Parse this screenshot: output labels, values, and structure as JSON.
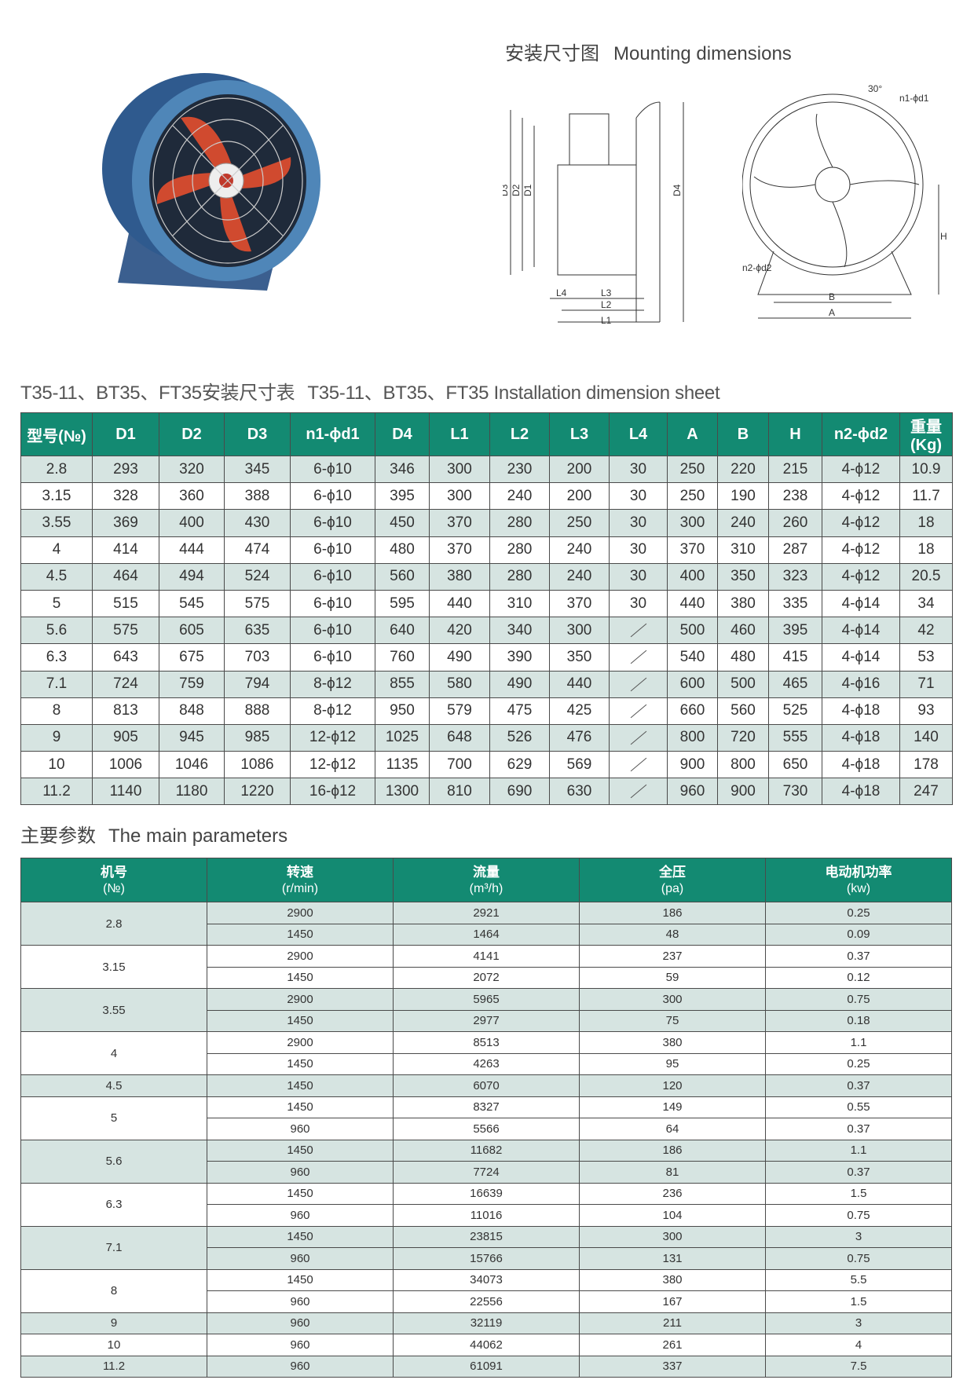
{
  "mounting": {
    "title_cn": "安装尺寸图",
    "title_en": "Mounting dimensions"
  },
  "diagram_labels": {
    "side": [
      "D3",
      "D2",
      "D1",
      "D4",
      "L4",
      "L3",
      "L2",
      "L1"
    ],
    "front": [
      "30°",
      "n1-ϕd1",
      "n2-ϕd2",
      "H",
      "B",
      "A"
    ]
  },
  "sheet": {
    "title_cn": "T35-11、BT35、FT35安装尺寸表",
    "title_en": "T35-11、BT35、FT35 Installation dimension sheet"
  },
  "colors": {
    "header": "#138a72",
    "shade": "#d6e4e1"
  },
  "dim_table": {
    "headers": [
      "型号(№)",
      "D1",
      "D2",
      "D3",
      "n1-ϕd1",
      "D4",
      "L1",
      "L2",
      "L3",
      "L4",
      "A",
      "B",
      "H",
      "n2-ϕd2",
      "重量(Kg)"
    ],
    "rows": [
      [
        "2.8",
        "293",
        "320",
        "345",
        "6-ϕ10",
        "346",
        "300",
        "230",
        "200",
        "30",
        "250",
        "220",
        "215",
        "4-ϕ12",
        "10.9"
      ],
      [
        "3.15",
        "328",
        "360",
        "388",
        "6-ϕ10",
        "395",
        "300",
        "240",
        "200",
        "30",
        "250",
        "190",
        "238",
        "4-ϕ12",
        "11.7"
      ],
      [
        "3.55",
        "369",
        "400",
        "430",
        "6-ϕ10",
        "450",
        "370",
        "280",
        "250",
        "30",
        "300",
        "240",
        "260",
        "4-ϕ12",
        "18"
      ],
      [
        "4",
        "414",
        "444",
        "474",
        "6-ϕ10",
        "480",
        "370",
        "280",
        "240",
        "30",
        "370",
        "310",
        "287",
        "4-ϕ12",
        "18"
      ],
      [
        "4.5",
        "464",
        "494",
        "524",
        "6-ϕ10",
        "560",
        "380",
        "280",
        "240",
        "30",
        "400",
        "350",
        "323",
        "4-ϕ12",
        "20.5"
      ],
      [
        "5",
        "515",
        "545",
        "575",
        "6-ϕ10",
        "595",
        "440",
        "310",
        "370",
        "30",
        "440",
        "380",
        "335",
        "4-ϕ14",
        "34"
      ],
      [
        "5.6",
        "575",
        "605",
        "635",
        "6-ϕ10",
        "640",
        "420",
        "340",
        "300",
        "/",
        "500",
        "460",
        "395",
        "4-ϕ14",
        "42"
      ],
      [
        "6.3",
        "643",
        "675",
        "703",
        "6-ϕ10",
        "760",
        "490",
        "390",
        "350",
        "/",
        "540",
        "480",
        "415",
        "4-ϕ14",
        "53"
      ],
      [
        "7.1",
        "724",
        "759",
        "794",
        "8-ϕ12",
        "855",
        "580",
        "490",
        "440",
        "/",
        "600",
        "500",
        "465",
        "4-ϕ16",
        "71"
      ],
      [
        "8",
        "813",
        "848",
        "888",
        "8-ϕ12",
        "950",
        "579",
        "475",
        "425",
        "/",
        "660",
        "560",
        "525",
        "4-ϕ18",
        "93"
      ],
      [
        "9",
        "905",
        "945",
        "985",
        "12-ϕ12",
        "1025",
        "648",
        "526",
        "476",
        "/",
        "800",
        "720",
        "555",
        "4-ϕ18",
        "140"
      ],
      [
        "10",
        "1006",
        "1046",
        "1086",
        "12-ϕ12",
        "1135",
        "700",
        "629",
        "569",
        "/",
        "900",
        "800",
        "650",
        "4-ϕ18",
        "178"
      ],
      [
        "11.2",
        "1140",
        "1180",
        "1220",
        "16-ϕ12",
        "1300",
        "810",
        "690",
        "630",
        "/",
        "960",
        "900",
        "730",
        "4-ϕ18",
        "247"
      ]
    ]
  },
  "params": {
    "title_cn": "主要参数",
    "title_en": "The main parameters"
  },
  "param_table": {
    "headers": [
      {
        "cn": "机号",
        "unit": "(№)"
      },
      {
        "cn": "转速",
        "unit": "(r/min)"
      },
      {
        "cn": "流量",
        "unit": "(m³/h)"
      },
      {
        "cn": "全压",
        "unit": "(pa)"
      },
      {
        "cn": "电动机功率",
        "unit": "(kw)"
      }
    ],
    "groups": [
      {
        "no": "2.8",
        "rows": [
          [
            "2900",
            "2921",
            "186",
            "0.25"
          ],
          [
            "1450",
            "1464",
            "48",
            "0.09"
          ]
        ]
      },
      {
        "no": "3.15",
        "rows": [
          [
            "2900",
            "4141",
            "237",
            "0.37"
          ],
          [
            "1450",
            "2072",
            "59",
            "0.12"
          ]
        ]
      },
      {
        "no": "3.55",
        "rows": [
          [
            "2900",
            "5965",
            "300",
            "0.75"
          ],
          [
            "1450",
            "2977",
            "75",
            "0.18"
          ]
        ]
      },
      {
        "no": "4",
        "rows": [
          [
            "2900",
            "8513",
            "380",
            "1.1"
          ],
          [
            "1450",
            "4263",
            "95",
            "0.25"
          ]
        ]
      },
      {
        "no": "4.5",
        "rows": [
          [
            "1450",
            "6070",
            "120",
            "0.37"
          ]
        ]
      },
      {
        "no": "5",
        "rows": [
          [
            "1450",
            "8327",
            "149",
            "0.55"
          ],
          [
            "960",
            "5566",
            "64",
            "0.37"
          ]
        ]
      },
      {
        "no": "5.6",
        "rows": [
          [
            "1450",
            "11682",
            "186",
            "1.1"
          ],
          [
            "960",
            "7724",
            "81",
            "0.37"
          ]
        ]
      },
      {
        "no": "6.3",
        "rows": [
          [
            "1450",
            "16639",
            "236",
            "1.5"
          ],
          [
            "960",
            "11016",
            "104",
            "0.75"
          ]
        ]
      },
      {
        "no": "7.1",
        "rows": [
          [
            "1450",
            "23815",
            "300",
            "3"
          ],
          [
            "960",
            "15766",
            "131",
            "0.75"
          ]
        ]
      },
      {
        "no": "8",
        "rows": [
          [
            "1450",
            "34073",
            "380",
            "5.5"
          ],
          [
            "960",
            "22556",
            "167",
            "1.5"
          ]
        ]
      },
      {
        "no": "9",
        "rows": [
          [
            "960",
            "32119",
            "211",
            "3"
          ]
        ]
      },
      {
        "no": "10",
        "rows": [
          [
            "960",
            "44062",
            "261",
            "4"
          ]
        ]
      },
      {
        "no": "11.2",
        "rows": [
          [
            "960",
            "61091",
            "337",
            "7.5"
          ]
        ]
      }
    ]
  }
}
